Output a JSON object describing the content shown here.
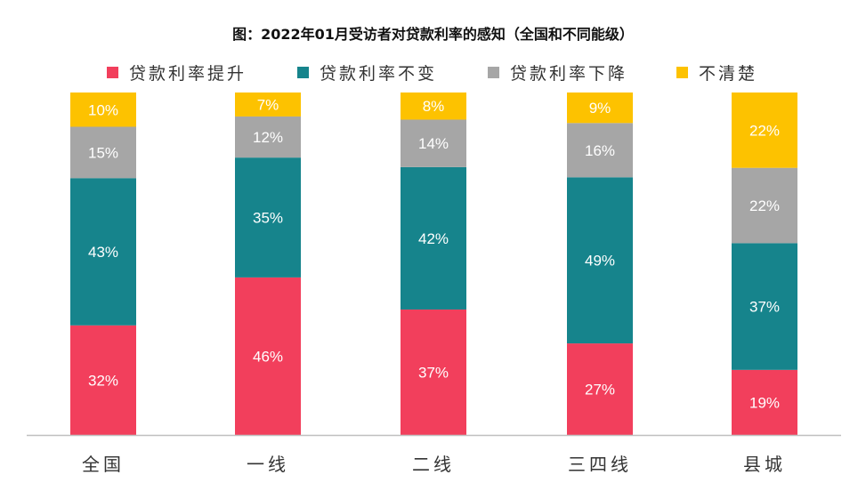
{
  "title": "图：2022年01月受访者对贷款利率的感知（全国和不同能级）",
  "colors": {
    "rise": "#f23f5c",
    "unchanged": "#16848c",
    "fall": "#a6a6a6",
    "unclear": "#fdc200",
    "axis": "#bfbfbf",
    "label": "#ffffff"
  },
  "legend": [
    {
      "label": "贷款利率提升",
      "color": "#f23f5c"
    },
    {
      "label": "贷款利率不变",
      "color": "#16848c"
    },
    {
      "label": "贷款利率下降",
      "color": "#a6a6a6"
    },
    {
      "label": "不清楚",
      "color": "#fdc200"
    }
  ],
  "chart_data": {
    "type": "bar",
    "stacked": true,
    "normalized_100": true,
    "categories": [
      "全国",
      "一线",
      "二线",
      "三四线",
      "县城"
    ],
    "series": [
      {
        "name": "贷款利率提升",
        "values": [
          32,
          46,
          37,
          27,
          19
        ],
        "color": "#f23f5c"
      },
      {
        "name": "贷款利率不变",
        "values": [
          43,
          35,
          42,
          49,
          37
        ],
        "color": "#16848c"
      },
      {
        "name": "贷款利率下降",
        "values": [
          15,
          12,
          14,
          16,
          22
        ],
        "color": "#a6a6a6"
      },
      {
        "name": "不清楚",
        "values": [
          10,
          7,
          8,
          9,
          22
        ],
        "color": "#fdc200"
      }
    ],
    "value_suffix": "%",
    "ylim": [
      0,
      100
    ],
    "legend_position": "top",
    "grid": false
  }
}
